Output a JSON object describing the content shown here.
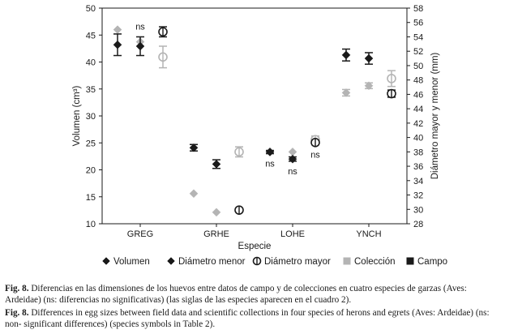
{
  "chart_data": {
    "type": "scatter",
    "xlabel": "Especie",
    "ylabel_left": "Volumen (cm³)",
    "ylabel_right": "Diámetro mayor y menor (mm)",
    "categories": [
      "GREG",
      "GRHE",
      "LOHE",
      "YNCH"
    ],
    "ylim_left": [
      10,
      50
    ],
    "yticks_left": [
      10,
      15,
      20,
      25,
      30,
      35,
      40,
      45,
      50
    ],
    "ylim_right": [
      28,
      58
    ],
    "yticks_right": [
      28,
      30,
      32,
      34,
      36,
      38,
      40,
      42,
      44,
      46,
      48,
      50,
      52,
      54,
      56,
      58
    ],
    "sources": [
      {
        "name": "Colección",
        "color": "#b4b4b4"
      },
      {
        "name": "Campo",
        "color": "#1a1a1a"
      }
    ],
    "measures": [
      {
        "name": "Volumen",
        "marker": "diamond",
        "axis": "left"
      },
      {
        "name": "Diámetro menor",
        "marker": "diamond",
        "axis": "right"
      },
      {
        "name": "Diámetro mayor",
        "marker": "circle-bar",
        "axis": "right"
      }
    ],
    "points": [
      {
        "category": "GREG",
        "measure": "Volumen",
        "source": "Colección",
        "value": 46.0,
        "err": 0
      },
      {
        "category": "GREG",
        "measure": "Volumen",
        "source": "Campo",
        "value": 43.2,
        "err": 2.0
      },
      {
        "category": "GREG",
        "measure": "Diámetro menor",
        "source": "Colección",
        "value": 53.3,
        "err": 0
      },
      {
        "category": "GREG",
        "measure": "Diámetro menor",
        "source": "Campo",
        "value": 52.7,
        "err": 1.3
      },
      {
        "category": "GREG",
        "measure": "Diámetro mayor",
        "source": "Colección",
        "value": 51.2,
        "err": 1.5
      },
      {
        "category": "GREG",
        "measure": "Diámetro mayor",
        "source": "Campo",
        "value": 54.7,
        "err": 0.7
      },
      {
        "category": "GRHE",
        "measure": "Volumen",
        "source": "Colección",
        "value": 15.6,
        "err": 0
      },
      {
        "category": "GRHE",
        "measure": "Volumen",
        "source": "Campo",
        "value": 24.1,
        "err": 0.6
      },
      {
        "category": "GRHE",
        "measure": "Diámetro menor",
        "source": "Colección",
        "value": 29.6,
        "err": 0
      },
      {
        "category": "GRHE",
        "measure": "Diámetro menor",
        "source": "Campo",
        "value": 36.3,
        "err": 0.6
      },
      {
        "category": "GRHE",
        "measure": "Diámetro mayor",
        "source": "Colección",
        "value": 38.0,
        "err": 0.7
      },
      {
        "category": "GRHE",
        "measure": "Diámetro mayor",
        "source": "Campo",
        "value": 29.9,
        "err": 0.2
      },
      {
        "category": "LOHE",
        "measure": "Volumen",
        "source": "Colección",
        "value": 23.4,
        "err": 0
      },
      {
        "category": "LOHE",
        "measure": "Volumen",
        "source": "Campo",
        "value": 23.3,
        "err": 0.3
      },
      {
        "category": "LOHE",
        "measure": "Diámetro menor",
        "source": "Colección",
        "value": 38.0,
        "err": 0
      },
      {
        "category": "LOHE",
        "measure": "Diámetro menor",
        "source": "Campo",
        "value": 37.0,
        "err": 0.3
      },
      {
        "category": "LOHE",
        "measure": "Diámetro mayor",
        "source": "Colección",
        "value": 39.7,
        "err": 0.5
      },
      {
        "category": "LOHE",
        "measure": "Diámetro mayor",
        "source": "Campo",
        "value": 39.3,
        "err": 0.3
      },
      {
        "category": "YNCH",
        "measure": "Volumen",
        "source": "Colección",
        "value": 34.3,
        "err": 0.6
      },
      {
        "category": "YNCH",
        "measure": "Volumen",
        "source": "Campo",
        "value": 41.3,
        "err": 1.1
      },
      {
        "category": "YNCH",
        "measure": "Diámetro menor",
        "source": "Colección",
        "value": 47.2,
        "err": 0.4
      },
      {
        "category": "YNCH",
        "measure": "Diámetro menor",
        "source": "Campo",
        "value": 51.0,
        "err": 0.8
      },
      {
        "category": "YNCH",
        "measure": "Diámetro mayor",
        "source": "Colección",
        "value": 48.2,
        "err": 1.1
      },
      {
        "category": "YNCH",
        "measure": "Diámetro mayor",
        "source": "Campo",
        "value": 46.1,
        "err": 0.5
      }
    ],
    "annotations": [
      {
        "text": "ns",
        "category": "GREG",
        "measure": "Diámetro menor",
        "position": "above"
      },
      {
        "text": "ns",
        "category": "LOHE",
        "measure": "Volumen",
        "position": "below"
      },
      {
        "text": "ns",
        "category": "LOHE",
        "measure": "Diámetro menor",
        "position": "below"
      },
      {
        "text": "ns",
        "category": "LOHE",
        "measure": "Diámetro mayor",
        "position": "below"
      }
    ],
    "grid": false,
    "legend_position": "bottom"
  },
  "caption_es_label": "Fig. 8.",
  "caption_es": "Diferencias en las dimensiones de los huevos entre datos de campo y de colecciones en cuatro especies de garzas (Aves: Ardeidae) (ns: diferencias no significativas) (las siglas de las especies aparecen en el cuadro 2).",
  "caption_en_label": "Fig. 8.",
  "caption_en": "Differences in egg sizes between field data and scientific collections in four species of herons and egrets (Aves: Ardeidae) (ns: non- significant differences) (species symbols in Table 2)."
}
